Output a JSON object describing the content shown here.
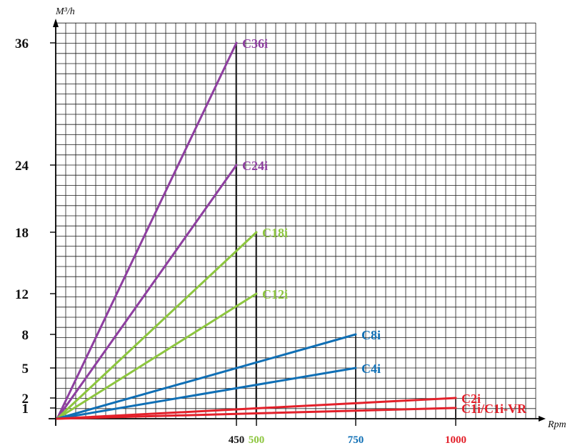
{
  "chart_data": {
    "type": "line",
    "title": "",
    "xlabel": "Rpm",
    "ylabel": "M³/h",
    "grid": true,
    "y_ticks": [
      {
        "value": 1,
        "label": "1"
      },
      {
        "value": 2,
        "label": "2"
      },
      {
        "value": 5,
        "label": "5"
      },
      {
        "value": 8,
        "label": "8"
      },
      {
        "value": 12,
        "label": "12"
      },
      {
        "value": 18,
        "label": "18"
      },
      {
        "value": 24,
        "label": "24"
      },
      {
        "value": 36,
        "label": "36"
      }
    ],
    "x_ticks": [
      {
        "value": 450,
        "label": "450",
        "color": "#1a1a1a"
      },
      {
        "value": 500,
        "label": "500",
        "color": "#8dc63f"
      },
      {
        "value": 750,
        "label": "750",
        "color": "#0f6fb5"
      },
      {
        "value": 1000,
        "label": "1000",
        "color": "#e3202a"
      }
    ],
    "series": [
      {
        "name": "C36i",
        "color": "#8e3fa0",
        "x": [
          0,
          450
        ],
        "y": [
          0,
          36
        ]
      },
      {
        "name": "C24i",
        "color": "#8e3fa0",
        "x": [
          0,
          450
        ],
        "y": [
          0,
          24
        ]
      },
      {
        "name": "C18i",
        "color": "#8dc63f",
        "x": [
          0,
          500
        ],
        "y": [
          0,
          18
        ]
      },
      {
        "name": "C12i",
        "color": "#8dc63f",
        "x": [
          0,
          500
        ],
        "y": [
          0,
          12
        ]
      },
      {
        "name": "C8i",
        "color": "#0f6fb5",
        "x": [
          0,
          750
        ],
        "y": [
          0,
          8
        ]
      },
      {
        "name": "C4i",
        "color": "#0f6fb5",
        "x": [
          0,
          750
        ],
        "y": [
          0,
          5
        ]
      },
      {
        "name": "C2i",
        "color": "#e3202a",
        "x": [
          0,
          1000
        ],
        "y": [
          0,
          2
        ]
      },
      {
        "name": "C1i/C1i-VR",
        "color": "#e3202a",
        "x": [
          0,
          1000
        ],
        "y": [
          0,
          1
        ]
      }
    ]
  }
}
